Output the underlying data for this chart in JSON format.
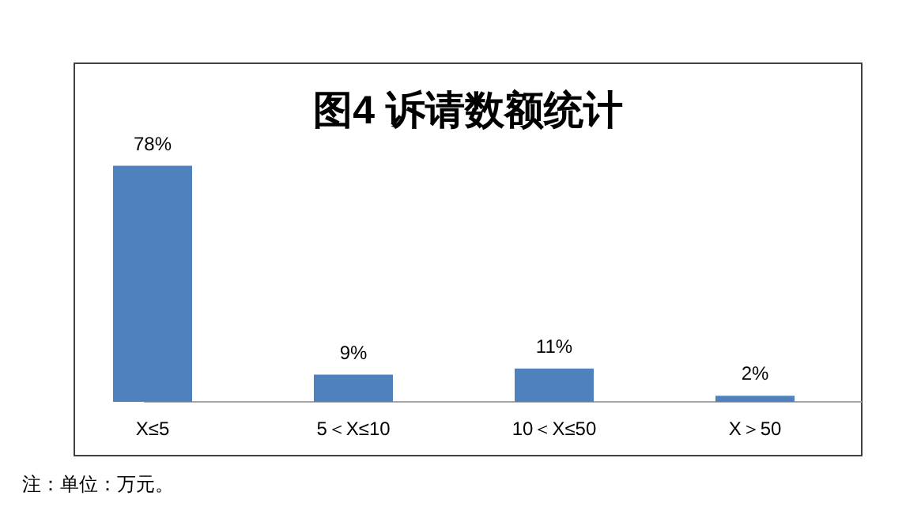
{
  "chart_data": {
    "type": "bar",
    "title": "图4 诉请数额统计",
    "categories": [
      "X≤5",
      "5＜X≤10",
      "10＜X≤50",
      "X＞50"
    ],
    "values": [
      78,
      9,
      11,
      2
    ],
    "value_labels": [
      "78%",
      "9%",
      "11%",
      "2%"
    ],
    "color": "#4f81bd",
    "annotations": [
      "注：单位：万元。"
    ]
  }
}
